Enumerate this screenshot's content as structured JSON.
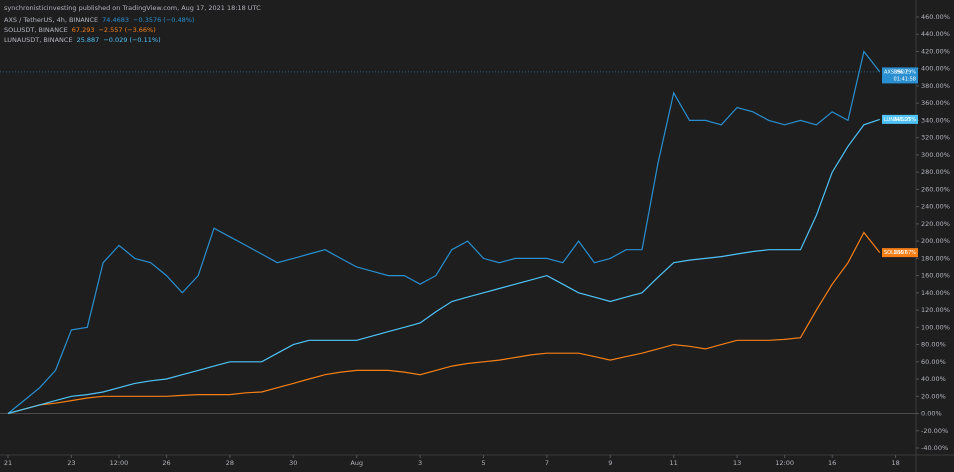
{
  "chart_data": {
    "type": "line",
    "title": "synchronisticinvesting published on TradingView.com, Aug 17, 2021 18:18 UTC",
    "categories": [
      "21",
      null,
      null,
      null,
      "23",
      null,
      null,
      "12:00",
      null,
      null,
      "26",
      null,
      null,
      null,
      "28",
      null,
      null,
      null,
      "30",
      null,
      null,
      null,
      "Aug",
      null,
      null,
      null,
      "3",
      null,
      null,
      null,
      "5",
      null,
      null,
      null,
      "7",
      null,
      null,
      null,
      "9",
      null,
      null,
      null,
      "11",
      null,
      null,
      null,
      "13",
      null,
      null,
      "12:00",
      null,
      null,
      "16",
      null,
      null,
      null,
      "18"
    ],
    "series": [
      {
        "name": "AXS / TetherUS, 4h, BINANCE",
        "legend_price": "74.4683",
        "legend_change": "−0.3576 (−0.48%)",
        "color": "#2a8fd0",
        "price_line": true,
        "tag_name": "AXSUSDT",
        "tag_value": "396.29%",
        "tag_time": "01:41:58",
        "values": [
          0,
          15,
          30,
          50,
          97,
          100,
          175,
          195,
          180,
          175,
          160,
          140,
          160,
          215,
          205,
          195,
          185,
          175,
          180,
          185,
          190,
          180,
          170,
          165,
          160,
          160,
          150,
          160,
          190,
          200,
          180,
          175,
          180,
          180,
          180,
          175,
          200,
          175,
          180,
          190,
          190,
          290,
          372,
          340,
          340,
          335,
          355,
          350,
          340,
          335,
          340,
          335,
          350,
          340,
          420,
          396.29,
          null
        ]
      },
      {
        "name": "SOLUSDT, BINANCE",
        "legend_price": "67.293",
        "legend_change": "−2.557 (−3.66%)",
        "color": "#f57f17",
        "price_line": false,
        "tag_name": "SOLUSDT",
        "tag_value": "186.67%",
        "values": [
          0,
          5,
          10,
          12,
          15,
          18,
          20,
          20,
          20,
          20,
          20,
          21,
          22,
          22,
          22,
          24,
          25,
          30,
          35,
          40,
          45,
          48,
          50,
          50,
          50,
          48,
          45,
          50,
          55,
          58,
          60,
          62,
          65,
          68,
          70,
          70,
          70,
          66,
          62,
          66,
          70,
          75,
          80,
          78,
          75,
          80,
          85,
          85,
          85,
          86,
          88,
          120,
          150,
          175,
          210,
          186.67,
          null
        ]
      },
      {
        "name": "LUNAUSDT, BINANCE",
        "legend_price": "25.887",
        "legend_change": "−0.029 (−0.11%)",
        "color": "#4fc3f7",
        "price_line": false,
        "tag_name": "LUNAUSDT",
        "tag_value": "341.25%",
        "values": [
          0,
          5,
          10,
          15,
          20,
          22,
          25,
          30,
          35,
          38,
          40,
          45,
          50,
          55,
          60,
          60,
          60,
          70,
          80,
          85,
          85,
          85,
          85,
          90,
          95,
          100,
          105,
          118,
          130,
          135,
          140,
          145,
          150,
          155,
          160,
          150,
          140,
          135,
          130,
          135,
          140,
          158,
          175,
          178,
          180,
          182,
          185,
          188,
          190,
          190,
          190,
          230,
          280,
          310,
          335,
          341.25,
          null
        ]
      }
    ],
    "ylim": [
      -40,
      460
    ],
    "yticks": [
      {
        "value": -40,
        "label": "-40.00%"
      },
      {
        "value": -20,
        "label": "-20.00%"
      },
      {
        "value": 0,
        "label": "0.00%"
      },
      {
        "value": 20,
        "label": "20.00%"
      },
      {
        "value": 40,
        "label": "40.00%"
      },
      {
        "value": 60,
        "label": "60.00%"
      },
      {
        "value": 80,
        "label": "80.00%"
      },
      {
        "value": 100,
        "label": "100.00%"
      },
      {
        "value": 120,
        "label": "120.00%"
      },
      {
        "value": 140,
        "label": "140.00%"
      },
      {
        "value": 160,
        "label": "160.00%"
      },
      {
        "value": 180,
        "label": "180.00%"
      },
      {
        "value": 200,
        "label": "200.00%"
      },
      {
        "value": 220,
        "label": "220.00%"
      },
      {
        "value": 240,
        "label": "240.00%"
      },
      {
        "value": 260,
        "label": "260.00%"
      },
      {
        "value": 280,
        "label": "280.00%"
      },
      {
        "value": 300,
        "label": "300.00%"
      },
      {
        "value": 320,
        "label": "320.00%"
      },
      {
        "value": 340,
        "label": "340.00%"
      },
      {
        "value": 360,
        "label": "360.00%"
      },
      {
        "value": 380,
        "label": "380.00%"
      },
      {
        "value": 400,
        "label": "400.00%"
      },
      {
        "value": 420,
        "label": "420.00%"
      },
      {
        "value": 440,
        "label": "440.00%"
      },
      {
        "value": 460,
        "label": "460.00%"
      }
    ],
    "grid": false,
    "zero_line": true
  }
}
